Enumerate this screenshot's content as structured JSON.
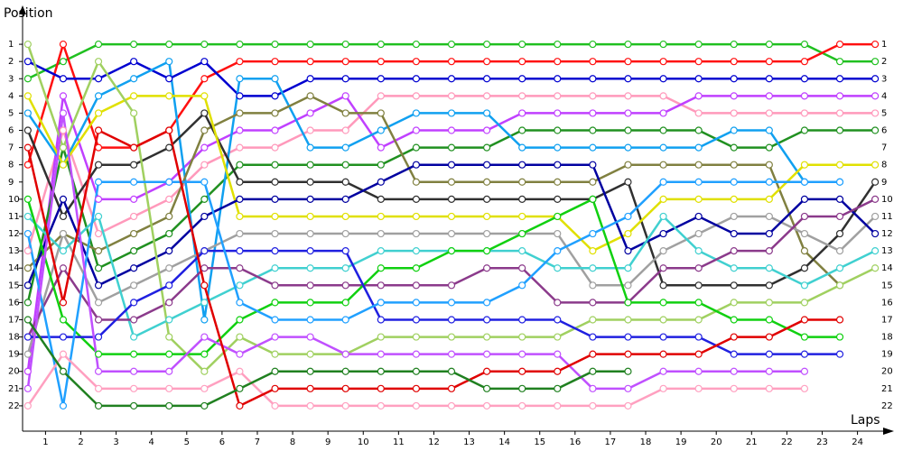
{
  "chart_data": {
    "type": "line",
    "y_label": "Position",
    "x_label": "Laps",
    "x": [
      0,
      1,
      2,
      3,
      4,
      5,
      6,
      7,
      8,
      9,
      10,
      11,
      12,
      13,
      14,
      15,
      16,
      17,
      18,
      19,
      20,
      21,
      22,
      23,
      24
    ],
    "xlim": [
      -0.15,
      24.15
    ],
    "ylim": [
      23,
      0
    ],
    "xticks": [
      {
        "value": 0.5,
        "label": "1"
      },
      {
        "value": 1.5,
        "label": "2"
      },
      {
        "value": 2.5,
        "label": "3"
      },
      {
        "value": 3.5,
        "label": "4"
      },
      {
        "value": 4.5,
        "label": "5"
      },
      {
        "value": 5.5,
        "label": "6"
      },
      {
        "value": 6.5,
        "label": "7"
      },
      {
        "value": 7.5,
        "label": "8"
      },
      {
        "value": 8.5,
        "label": "9"
      },
      {
        "value": 9.5,
        "label": "10"
      },
      {
        "value": 10.5,
        "label": "11"
      },
      {
        "value": 11.5,
        "label": "12"
      },
      {
        "value": 12.5,
        "label": "13"
      },
      {
        "value": 13.5,
        "label": "14"
      },
      {
        "value": 14.5,
        "label": "15"
      },
      {
        "value": 15.5,
        "label": "16"
      },
      {
        "value": 16.5,
        "label": "17"
      },
      {
        "value": 17.5,
        "label": "18"
      },
      {
        "value": 18.5,
        "label": "19"
      },
      {
        "value": 19.5,
        "label": "20"
      },
      {
        "value": 20.5,
        "label": "21"
      },
      {
        "value": 21.5,
        "label": "22"
      },
      {
        "value": 22.5,
        "label": "23"
      },
      {
        "value": 23.5,
        "label": "24"
      }
    ],
    "yticks": [
      1,
      2,
      3,
      4,
      5,
      6,
      7,
      8,
      9,
      10,
      11,
      12,
      13,
      14,
      15,
      16,
      17,
      18,
      19,
      20,
      21,
      22
    ],
    "series": [
      {
        "color": "#20c020",
        "values": [
          3,
          2,
          1,
          1,
          1,
          1,
          1,
          1,
          1,
          1,
          1,
          1,
          1,
          1,
          1,
          1,
          1,
          1,
          1,
          1,
          1,
          1,
          1,
          2,
          2
        ]
      },
      {
        "color": "#ff1010",
        "values": [
          8,
          1,
          7,
          7,
          6,
          3,
          2,
          2,
          2,
          2,
          2,
          2,
          2,
          2,
          2,
          2,
          2,
          2,
          2,
          2,
          2,
          2,
          2,
          1,
          1
        ]
      },
      {
        "color": "#0000d0",
        "values": [
          2,
          3,
          3,
          2,
          3,
          2,
          4,
          4,
          3,
          3,
          3,
          3,
          3,
          3,
          3,
          3,
          3,
          3,
          3,
          3,
          3,
          3,
          3,
          3,
          3
        ]
      },
      {
        "color": "#ff99bb",
        "values": [
          13,
          6,
          12,
          11,
          10,
          8,
          7,
          7,
          6,
          6,
          4,
          4,
          4,
          4,
          4,
          4,
          4,
          4,
          4,
          5,
          5,
          5,
          5,
          5,
          5
        ]
      },
      {
        "color": "#c040ff",
        "values": [
          20,
          4,
          10,
          10,
          9,
          7,
          6,
          6,
          5,
          4,
          7,
          6,
          6,
          6,
          5,
          5,
          5,
          5,
          5,
          4,
          4,
          4,
          4,
          4,
          4
        ]
      },
      {
        "color": "#209020",
        "values": [
          16,
          7,
          14,
          13,
          12,
          10,
          8,
          8,
          8,
          8,
          8,
          7,
          7,
          7,
          6,
          6,
          6,
          6,
          6,
          6,
          7,
          7,
          6,
          6,
          6
        ]
      },
      {
        "color": "#10a0f0",
        "values": [
          5,
          8,
          4,
          3,
          2,
          17,
          3,
          3,
          7,
          7,
          6,
          5,
          5,
          5,
          7,
          7,
          7,
          7,
          7,
          7,
          6,
          6,
          9,
          9,
          null
        ]
      },
      {
        "color": "#808040",
        "values": [
          14,
          12,
          13,
          12,
          11,
          6,
          5,
          5,
          4,
          5,
          5,
          9,
          9,
          9,
          9,
          9,
          9,
          8,
          8,
          8,
          8,
          8,
          13,
          15,
          null
        ]
      },
      {
        "color": "#303030",
        "values": [
          6,
          11,
          8,
          8,
          7,
          5,
          9,
          9,
          9,
          9,
          10,
          10,
          10,
          10,
          10,
          10,
          10,
          9,
          15,
          15,
          15,
          15,
          14,
          12,
          9
        ]
      },
      {
        "color": "#e0e000",
        "values": [
          4,
          8,
          5,
          4,
          4,
          4,
          11,
          11,
          11,
          11,
          11,
          11,
          11,
          11,
          11,
          11,
          13,
          12,
          10,
          10,
          10,
          10,
          8,
          8,
          8
        ]
      },
      {
        "color": "#a0a0a0",
        "values": [
          19,
          12,
          16,
          15,
          14,
          13,
          12,
          12,
          12,
          12,
          12,
          12,
          12,
          12,
          12,
          12,
          15,
          15,
          13,
          12,
          11,
          11,
          12,
          13,
          11
        ]
      },
      {
        "color": "#0000a0",
        "values": [
          15,
          10,
          15,
          14,
          13,
          11,
          10,
          10,
          10,
          10,
          9,
          8,
          8,
          8,
          8,
          8,
          8,
          13,
          12,
          11,
          12,
          12,
          10,
          10,
          12
        ]
      },
      {
        "color": "#40d0d0",
        "values": [
          11,
          13,
          11,
          18,
          17,
          16,
          15,
          14,
          14,
          14,
          13,
          13,
          13,
          13,
          13,
          14,
          14,
          14,
          11,
          13,
          14,
          14,
          15,
          14,
          13
        ]
      },
      {
        "color": "#8b3a8b",
        "values": [
          18,
          14,
          17,
          17,
          16,
          14,
          14,
          15,
          15,
          15,
          15,
          15,
          15,
          14,
          14,
          16,
          16,
          16,
          14,
          14,
          13,
          13,
          11,
          11,
          10
        ]
      },
      {
        "color": "#a0d060",
        "values": [
          1,
          7,
          2,
          5,
          18,
          20,
          18,
          19,
          19,
          19,
          18,
          18,
          18,
          18,
          18,
          18,
          17,
          17,
          17,
          17,
          16,
          16,
          16,
          15,
          14
        ]
      },
      {
        "color": "#10d010",
        "values": [
          10,
          17,
          19,
          19,
          19,
          19,
          17,
          16,
          16,
          16,
          14,
          14,
          13,
          13,
          12,
          11,
          10,
          16,
          16,
          16,
          17,
          17,
          18,
          18,
          null
        ]
      },
      {
        "color": "#2020e0",
        "values": [
          18,
          18,
          18,
          16,
          15,
          13,
          13,
          13,
          13,
          13,
          17,
          17,
          17,
          17,
          17,
          17,
          18,
          18,
          18,
          18,
          19,
          19,
          19,
          19,
          null
        ]
      },
      {
        "color": "#20a0ff",
        "values": [
          12,
          22,
          9,
          9,
          9,
          9,
          16,
          17,
          17,
          17,
          16,
          16,
          16,
          16,
          15,
          13,
          12,
          11,
          9,
          9,
          9,
          9,
          9,
          9,
          null
        ]
      },
      {
        "color": "#c050ff",
        "values": [
          21,
          5,
          20,
          20,
          20,
          18,
          19,
          18,
          18,
          19,
          19,
          19,
          19,
          19,
          19,
          19,
          21,
          21,
          20,
          20,
          20,
          20,
          20,
          null,
          null
        ]
      },
      {
        "color": "#ffa0c0",
        "values": [
          22,
          19,
          21,
          21,
          21,
          21,
          20,
          22,
          22,
          22,
          22,
          22,
          22,
          22,
          22,
          22,
          22,
          22,
          21,
          21,
          21,
          21,
          21,
          null,
          null
        ]
      },
      {
        "color": "#e00000",
        "values": [
          7,
          16,
          6,
          7,
          6,
          15,
          22,
          21,
          21,
          21,
          21,
          21,
          21,
          20,
          20,
          20,
          19,
          19,
          19,
          19,
          18,
          18,
          17,
          17,
          null
        ]
      },
      {
        "color": "#208020",
        "values": [
          17,
          20,
          22,
          22,
          22,
          22,
          21,
          20,
          20,
          20,
          20,
          20,
          20,
          21,
          21,
          21,
          20,
          20,
          null,
          null,
          null,
          null,
          null,
          null,
          null
        ]
      }
    ]
  }
}
